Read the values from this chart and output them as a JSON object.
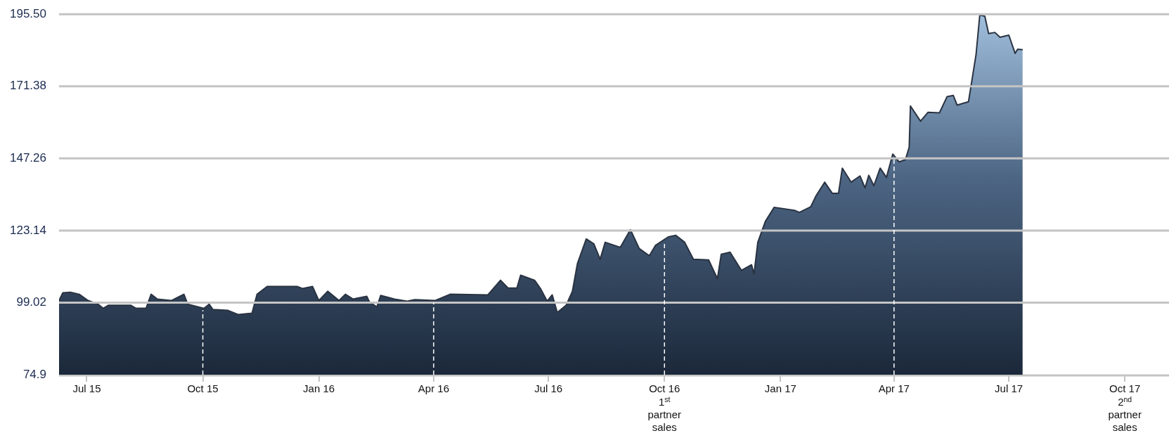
{
  "chart_data": {
    "type": "area",
    "x": [
      "2015-06-09",
      "2015-06-12",
      "2015-06-18",
      "2015-06-25",
      "2015-07-02",
      "2015-07-10",
      "2015-07-14",
      "2015-07-18",
      "2015-08-05",
      "2015-08-09",
      "2015-08-17",
      "2015-08-21",
      "2015-08-26",
      "2015-09-06",
      "2015-09-16",
      "2015-09-19",
      "2015-10-02",
      "2015-10-06",
      "2015-10-09",
      "2015-10-21",
      "2015-10-29",
      "2015-11-09",
      "2015-11-13",
      "2015-11-21",
      "2015-12-15",
      "2015-12-19",
      "2015-12-27",
      "2016-01-01",
      "2016-01-08",
      "2016-01-17",
      "2016-01-22",
      "2016-01-28",
      "2016-02-08",
      "2016-02-10",
      "2016-02-16",
      "2016-02-19",
      "2016-03-01",
      "2016-03-11",
      "2016-03-17",
      "2016-04-02",
      "2016-04-14",
      "2016-05-14",
      "2016-05-24",
      "2016-05-30",
      "2016-06-06",
      "2016-06-09",
      "2016-06-20",
      "2016-06-25",
      "2016-06-30",
      "2016-07-04",
      "2016-07-08",
      "2016-07-15",
      "2016-07-20",
      "2016-07-24",
      "2016-07-31",
      "2016-08-06",
      "2016-08-11",
      "2016-08-15",
      "2016-08-27",
      "2016-09-04",
      "2016-09-11",
      "2016-09-19",
      "2016-09-24",
      "2016-10-04",
      "2016-10-10",
      "2016-10-17",
      "2016-10-24",
      "2016-11-05",
      "2016-11-12",
      "2016-11-15",
      "2016-11-22",
      "2016-12-01",
      "2016-12-09",
      "2016-12-11",
      "2016-12-14",
      "2016-12-20",
      "2016-12-27",
      "2017-01-12",
      "2017-01-16",
      "2017-01-25",
      "2017-01-29",
      "2017-02-05",
      "2017-02-11",
      "2017-02-16",
      "2017-02-19",
      "2017-02-26",
      "2017-03-05",
      "2017-03-09",
      "2017-03-12",
      "2017-03-16",
      "2017-03-21",
      "2017-03-26",
      "2017-03-31",
      "2017-04-05",
      "2017-04-10",
      "2017-04-13",
      "2017-04-14",
      "2017-04-22",
      "2017-04-28",
      "2017-05-07",
      "2017-05-13",
      "2017-05-18",
      "2017-05-21",
      "2017-05-30",
      "2017-06-01",
      "2017-06-05",
      "2017-06-08",
      "2017-06-12",
      "2017-06-15",
      "2017-06-20",
      "2017-06-24",
      "2017-07-01",
      "2017-07-06",
      "2017-07-08",
      "2017-07-12"
    ],
    "series": [
      {
        "color": "#2a3342",
        "values": [
          99.7,
          102.3,
          102.5,
          101.8,
          99.7,
          98.5,
          97.1,
          98.1,
          98.1,
          97.1,
          97.1,
          101.8,
          100.2,
          99.7,
          101.8,
          98.5,
          97.1,
          98.5,
          96.7,
          96.4,
          95.0,
          95.5,
          101.8,
          104.4,
          104.4,
          103.7,
          104.4,
          99.7,
          102.8,
          99.7,
          101.8,
          100.2,
          101.1,
          99.3,
          97.6,
          101.4,
          100.2,
          99.5,
          100.0,
          99.7,
          101.8,
          101.6,
          106.5,
          103.9,
          103.9,
          108.2,
          106.5,
          103.5,
          99.5,
          101.6,
          95.7,
          98.1,
          102.8,
          112.1,
          120.3,
          118.7,
          113.5,
          119.2,
          117.5,
          123.4,
          117.1,
          114.7,
          118.2,
          121.0,
          121.5,
          119.2,
          113.5,
          113.3,
          107.0,
          115.2,
          115.9,
          109.8,
          111.7,
          108.6,
          119.2,
          126.2,
          130.9,
          129.9,
          129.2,
          131.1,
          134.6,
          139.3,
          135.6,
          135.6,
          144.0,
          139.3,
          141.4,
          137.4,
          141.6,
          138.1,
          144.0,
          140.9,
          148.7,
          146.1,
          146.8,
          151.0,
          164.8,
          159.7,
          162.7,
          162.5,
          167.9,
          168.3,
          165.1,
          166.2,
          171.4,
          181.9,
          195.3,
          194.8,
          189.0,
          189.4,
          187.8,
          188.5,
          182.4,
          183.8,
          183.6
        ]
      }
    ],
    "xlim": [
      "2015-06-09",
      "2017-11-05"
    ],
    "xticks": [
      {
        "value": "2015-07-01",
        "label": "Jul 15"
      },
      {
        "value": "2015-10-01",
        "label": "Oct 15"
      },
      {
        "value": "2016-01-01",
        "label": "Jan 16"
      },
      {
        "value": "2016-04-01",
        "label": "Apr 16"
      },
      {
        "value": "2016-07-01",
        "label": "Jul 16"
      },
      {
        "value": "2016-10-01",
        "label": "Oct 16"
      },
      {
        "value": "2017-01-01",
        "label": "Jan 17"
      },
      {
        "value": "2017-04-01",
        "label": "Apr 17"
      },
      {
        "value": "2017-07-01",
        "label": "Jul 17"
      },
      {
        "value": "2017-10-01",
        "label": "Oct 17"
      }
    ],
    "ylim": [
      74.9,
      195.5
    ],
    "yticks": [
      74.9,
      {
        "value": 99.02,
        "label": "99.02"
      },
      123.14,
      147.26,
      171.38,
      {
        "value": 195.5,
        "label": "195.50"
      }
    ],
    "grid": "y",
    "legend": false,
    "marker": "none",
    "ref_lines": [
      {
        "axis": "x",
        "value": "2015-10-01",
        "color": "#ffffff",
        "line_style": "dashed"
      },
      {
        "axis": "x",
        "value": "2016-04-01",
        "color": "#ffffff",
        "line_style": "dashed"
      },
      {
        "axis": "x",
        "value": "2016-10-01",
        "label": "1$^{st}$ partner sales",
        "color": "#ffffff",
        "line_style": "dashed"
      },
      {
        "axis": "x",
        "value": "2017-04-01",
        "color": "#ffffff",
        "line_style": "dashed"
      }
    ],
    "annotations": [
      "2$^{nd}$ partner sales"
    ]
  }
}
